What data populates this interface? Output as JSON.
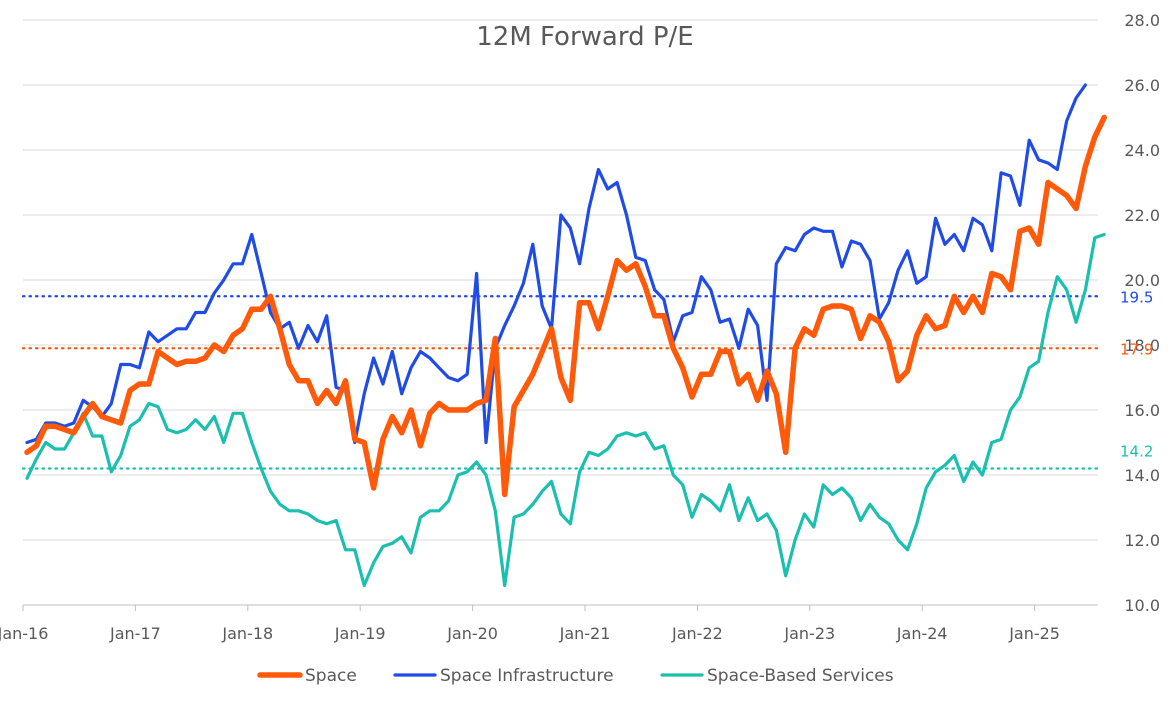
{
  "chart_data": {
    "type": "line",
    "title": "12M Forward P/E",
    "xlabel": "",
    "ylabel": "",
    "x_ticks": [
      "Jan-16",
      "Jan-17",
      "Jan-18",
      "Jan-19",
      "Jan-20",
      "Jan-21",
      "Jan-22",
      "Jan-23",
      "Jan-24",
      "Jan-25"
    ],
    "ylim": [
      10.0,
      28.0
    ],
    "y_ticks": [
      "10.0",
      "12.0",
      "14.0",
      "16.0",
      "18.0",
      "20.0",
      "22.0",
      "24.0",
      "26.0",
      "28.0"
    ],
    "y_axis_side": "right",
    "grid": "horizontal",
    "legend_position": "bottom",
    "x_start": "2016-01",
    "x_step": "month",
    "series": [
      {
        "name": "Space",
        "color": "#FF5A0A",
        "values": [
          14.7,
          14.9,
          15.5,
          15.5,
          15.4,
          15.3,
          15.8,
          16.2,
          15.8,
          15.7,
          15.6,
          16.6,
          16.8,
          16.8,
          17.8,
          17.6,
          17.4,
          17.5,
          17.5,
          17.6,
          18.0,
          17.8,
          18.3,
          18.5,
          19.1,
          19.1,
          19.5,
          18.5,
          17.4,
          16.9,
          16.9,
          16.2,
          16.6,
          16.2,
          16.9,
          15.1,
          15.0,
          13.6,
          15.1,
          15.8,
          15.3,
          16.0,
          14.9,
          15.9,
          16.2,
          16.0,
          16.0,
          16.0,
          16.2,
          16.3,
          18.2,
          13.4,
          16.1,
          16.6,
          17.1,
          17.8,
          18.5,
          17.0,
          16.3,
          19.3,
          19.3,
          18.5,
          19.5,
          20.6,
          20.3,
          20.5,
          19.8,
          18.9,
          18.9,
          17.9,
          17.3,
          16.4,
          17.1,
          17.1,
          17.8,
          17.8,
          16.8,
          17.1,
          16.3,
          17.2,
          16.5,
          14.7,
          17.9,
          18.5,
          18.3,
          19.1,
          19.2,
          19.2,
          19.1,
          18.2,
          18.9,
          18.7,
          18.1,
          16.9,
          17.2,
          18.3,
          18.9,
          18.5,
          18.6,
          19.5,
          19.0,
          19.5,
          19.0,
          20.2,
          20.1,
          19.7,
          21.5,
          21.6,
          21.1,
          23.0,
          22.8,
          22.6,
          22.2,
          23.5,
          24.4,
          25.0
        ]
      },
      {
        "name": "Space Infrastructure",
        "color": "#1F4BE6",
        "values": [
          15.0,
          15.1,
          15.6,
          15.6,
          15.5,
          15.6,
          16.3,
          16.1,
          15.8,
          16.2,
          17.4,
          17.4,
          17.3,
          18.4,
          18.1,
          18.3,
          18.5,
          18.5,
          19.0,
          19.0,
          19.6,
          20.0,
          20.5,
          20.5,
          21.4,
          20.2,
          19.0,
          18.5,
          18.7,
          17.9,
          18.6,
          18.1,
          18.9,
          16.7,
          16.6,
          15.0,
          16.5,
          17.6,
          16.8,
          17.8,
          16.5,
          17.3,
          17.8,
          17.6,
          17.3,
          17.0,
          16.9,
          17.1,
          20.2,
          15.0,
          17.9,
          18.6,
          19.2,
          19.9,
          21.1,
          19.2,
          18.5,
          22.0,
          21.6,
          20.5,
          22.2,
          23.4,
          22.8,
          23.0,
          22.0,
          20.7,
          20.6,
          19.7,
          19.4,
          18.1,
          18.9,
          19.0,
          20.1,
          19.7,
          18.7,
          18.8,
          17.9,
          19.1,
          18.6,
          16.3,
          20.5,
          21.0,
          20.9,
          21.4,
          21.6,
          21.5,
          21.5,
          20.4,
          21.2,
          21.1,
          20.6,
          18.8,
          19.3,
          20.3,
          20.9,
          19.9,
          20.1,
          21.9,
          21.1,
          21.4,
          20.9,
          21.9,
          21.7,
          20.9,
          23.3,
          23.2,
          22.3,
          24.3,
          23.7,
          23.6,
          23.4,
          24.9,
          25.6,
          26.0
        ]
      },
      {
        "name": "Space-Based Services",
        "color": "#1ABFB0",
        "values": [
          13.9,
          14.5,
          15.0,
          14.8,
          14.8,
          15.3,
          15.9,
          15.2,
          15.2,
          14.1,
          14.6,
          15.5,
          15.7,
          16.2,
          16.1,
          15.4,
          15.3,
          15.4,
          15.7,
          15.4,
          15.8,
          15.0,
          15.9,
          15.9,
          15.0,
          14.2,
          13.5,
          13.1,
          12.9,
          12.9,
          12.8,
          12.6,
          12.5,
          12.6,
          11.7,
          11.7,
          10.6,
          11.3,
          11.8,
          11.9,
          12.1,
          11.6,
          12.7,
          12.9,
          12.9,
          13.2,
          14.0,
          14.1,
          14.4,
          14.0,
          12.9,
          10.6,
          12.7,
          12.8,
          13.1,
          13.5,
          13.8,
          12.8,
          12.5,
          14.1,
          14.7,
          14.6,
          14.8,
          15.2,
          15.3,
          15.2,
          15.3,
          14.8,
          14.9,
          14.0,
          13.7,
          12.7,
          13.4,
          13.2,
          12.9,
          13.7,
          12.6,
          13.3,
          12.6,
          12.8,
          12.3,
          10.9,
          12.0,
          12.8,
          12.4,
          13.7,
          13.4,
          13.6,
          13.3,
          12.6,
          13.1,
          12.7,
          12.5,
          12.0,
          11.7,
          12.5,
          13.6,
          14.1,
          14.3,
          14.6,
          13.8,
          14.4,
          14.0,
          15.0,
          15.1,
          16.0,
          16.4,
          17.3,
          17.5,
          19.0,
          20.1,
          19.7,
          18.7,
          19.7,
          21.3,
          21.4
        ]
      }
    ],
    "reference_lines": [
      {
        "value": 19.5,
        "label": "19.5",
        "color": "#1F4BE6"
      },
      {
        "value": 17.9,
        "label": "17.9",
        "color": "#FF5A0A"
      },
      {
        "value": 14.2,
        "label": "14.2",
        "color": "#1ABFB0"
      }
    ]
  }
}
